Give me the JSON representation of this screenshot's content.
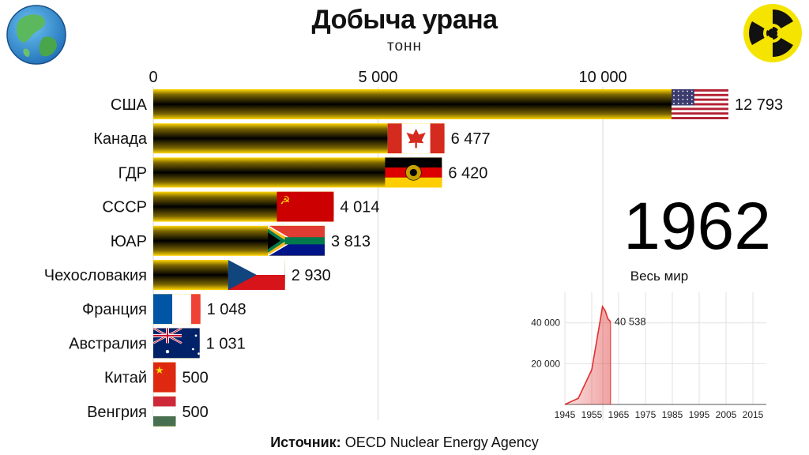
{
  "title": "Добыча урана",
  "subtitle": "тонн",
  "year": "1962",
  "source": {
    "label": "Источник:",
    "text": "OECD Nuclear Energy Agency"
  },
  "chart_data": [
    {
      "type": "bar",
      "orientation": "horizontal",
      "title": "Добыча урана",
      "subtitle": "тонн",
      "categories": [
        "США",
        "Канада",
        "ГДР",
        "СССР",
        "ЮАР",
        "Чехословакия",
        "Франция",
        "Австралия",
        "Китай",
        "Венгрия"
      ],
      "values": [
        12793,
        6477,
        6420,
        4014,
        3813,
        2930,
        1048,
        1031,
        500,
        500
      ],
      "value_labels": [
        "12 793",
        "6 477",
        "6 420",
        "4 014",
        "3 813",
        "2 930",
        "1 048",
        "1 031",
        "500",
        "500"
      ],
      "xlim": [
        0,
        12793
      ],
      "xticks": [
        0,
        5000,
        10000
      ],
      "xtick_labels": [
        "0",
        "5 000",
        "10 000"
      ],
      "axis_position": "top",
      "grid": true,
      "bar_colors": [
        "#000000",
        "#ffd700"
      ],
      "flags": [
        "flag-usa",
        "flag-canada",
        "flag-gdr",
        "flag-ussr",
        "flag-south-africa",
        "flag-czechoslovakia",
        "flag-france",
        "flag-australia",
        "flag-china",
        "flag-hungary"
      ]
    },
    {
      "type": "area",
      "title": "Весь мир",
      "x": [
        1945,
        1950,
        1955,
        1958,
        1959,
        1960,
        1961,
        1962
      ],
      "values": [
        0,
        3000,
        17000,
        40000,
        48000,
        46000,
        42000,
        40538
      ],
      "last_value_label": "40 538",
      "xlim": [
        1945,
        2020
      ],
      "ylim": [
        0,
        55000
      ],
      "xticks": [
        1945,
        1955,
        1965,
        1975,
        1985,
        1995,
        2005,
        2015
      ],
      "yticks": [
        20000,
        40000
      ],
      "ytick_labels": [
        "20 000",
        "40 000"
      ],
      "grid": true,
      "color": "#e03030"
    }
  ],
  "colors": {
    "bar_dark": "#000000",
    "bar_gold": "#ffd700",
    "accent_red": "#e03030"
  },
  "logos": [
    "globe-icon",
    "radiation-icon"
  ]
}
